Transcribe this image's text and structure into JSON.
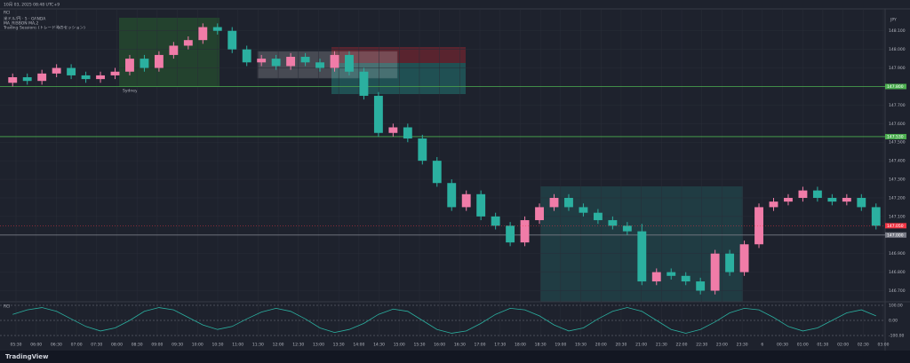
{
  "header": {
    "timestamp": "10月 03, 2025 08:48 UTC+9",
    "legend": [
      "米ドル/円 · 5 · OANDA",
      "MA_RIBBON MA,2",
      "Trading Sessions (トレード時のセッション)"
    ],
    "pane_label": "RCI",
    "session_label": "Sydney",
    "currency": "JPY"
  },
  "footer": {
    "brand": "TradingView"
  },
  "chart_data": {
    "type": "candlestick",
    "up_color": "#f07ca8",
    "down_color": "#2bb0a0",
    "open": [
      147.82,
      147.85,
      147.83,
      147.87,
      147.9,
      147.86,
      147.84,
      147.86,
      147.88,
      147.95,
      147.9,
      147.97,
      148.02,
      148.05,
      148.12,
      148.1,
      148.0,
      147.93,
      147.95,
      147.91,
      147.96,
      147.93,
      147.9,
      147.97,
      147.88,
      147.75,
      147.55,
      147.58,
      147.52,
      147.4,
      147.28,
      147.15,
      147.22,
      147.1,
      147.05,
      146.96,
      147.08,
      147.15,
      147.2,
      147.15,
      147.12,
      147.08,
      147.05,
      147.02,
      146.75,
      146.8,
      146.78,
      146.75,
      146.7,
      146.9,
      146.8,
      146.95,
      147.15,
      147.18,
      147.2,
      147.24,
      147.2,
      147.18,
      147.2,
      147.15
    ],
    "close": [
      147.85,
      147.83,
      147.87,
      147.9,
      147.86,
      147.84,
      147.86,
      147.88,
      147.95,
      147.9,
      147.97,
      148.02,
      148.05,
      148.12,
      148.1,
      148.0,
      147.93,
      147.95,
      147.91,
      147.96,
      147.93,
      147.9,
      147.97,
      147.88,
      147.75,
      147.55,
      147.58,
      147.52,
      147.4,
      147.28,
      147.15,
      147.22,
      147.1,
      147.05,
      146.96,
      147.08,
      147.15,
      147.2,
      147.15,
      147.12,
      147.08,
      147.05,
      147.02,
      146.75,
      146.8,
      146.78,
      146.75,
      146.7,
      146.9,
      146.8,
      146.95,
      147.15,
      147.18,
      147.2,
      147.24,
      147.2,
      147.18,
      147.2,
      147.15,
      147.05
    ],
    "high": [
      147.87,
      147.87,
      147.89,
      147.92,
      147.92,
      147.88,
      147.88,
      147.9,
      147.97,
      147.97,
      147.99,
      148.04,
      148.07,
      148.14,
      148.14,
      148.12,
      148.02,
      147.97,
      147.97,
      147.98,
      147.98,
      147.95,
      147.99,
      147.99,
      147.9,
      147.77,
      147.6,
      147.6,
      147.54,
      147.42,
      147.3,
      147.24,
      147.24,
      147.12,
      147.07,
      147.1,
      147.17,
      147.22,
      147.22,
      147.17,
      147.14,
      147.1,
      147.07,
      147.06,
      146.82,
      146.82,
      146.8,
      146.77,
      146.92,
      146.92,
      146.97,
      147.17,
      147.2,
      147.22,
      147.26,
      147.26,
      147.22,
      147.22,
      147.22,
      147.17
    ],
    "low": [
      147.8,
      147.81,
      147.81,
      147.85,
      147.84,
      147.82,
      147.82,
      147.84,
      147.86,
      147.88,
      147.88,
      147.95,
      148.0,
      148.03,
      148.08,
      147.98,
      147.91,
      147.91,
      147.89,
      147.89,
      147.91,
      147.88,
      147.88,
      147.86,
      147.73,
      147.53,
      147.53,
      147.5,
      147.38,
      147.26,
      147.13,
      147.13,
      147.08,
      147.03,
      146.94,
      146.94,
      147.06,
      147.13,
      147.13,
      147.1,
      147.06,
      147.03,
      147.0,
      146.73,
      146.73,
      146.76,
      146.73,
      146.68,
      146.68,
      146.78,
      146.78,
      146.93,
      147.13,
      147.16,
      147.18,
      147.18,
      147.16,
      147.16,
      147.13,
      147.03
    ],
    "ylim": [
      146.65,
      148.18
    ],
    "yticks": [
      {
        "value": 146.7,
        "label": "146.700"
      },
      {
        "value": 146.8,
        "label": "146.800"
      },
      {
        "value": 146.9,
        "label": "146.900"
      },
      {
        "value": 147.0,
        "label": "147.000"
      },
      {
        "value": 147.1,
        "label": "147.100"
      },
      {
        "value": 147.2,
        "label": "147.200"
      },
      {
        "value": 147.3,
        "label": "147.300"
      },
      {
        "value": 147.4,
        "label": "147.400"
      },
      {
        "value": 147.5,
        "label": "147.500"
      },
      {
        "value": 147.6,
        "label": "147.600"
      },
      {
        "value": 147.7,
        "label": "147.700"
      },
      {
        "value": 147.8,
        "label": "147.800"
      },
      {
        "value": 147.9,
        "label": "147.900"
      },
      {
        "value": 148.0,
        "label": "148.000"
      },
      {
        "value": 148.1,
        "label": "148.100"
      }
    ],
    "hlines": [
      {
        "value": 147.8,
        "label": "147.800",
        "color": "#4caf50"
      },
      {
        "value": 147.53,
        "label": "147.530",
        "color": "#4caf50"
      },
      {
        "value": 147.0,
        "label": "147.000",
        "color": "#787b86"
      }
    ],
    "last_price": {
      "value": 147.05,
      "label": "147.050",
      "color": "#f23645"
    },
    "xtick_labels": [
      "05:30",
      "06:00",
      "06:30",
      "07:00",
      "07:30",
      "08:00",
      "08:30",
      "09:00",
      "09:30",
      "10:00",
      "10:30",
      "11:00",
      "11:30",
      "12:00",
      "12:30",
      "13:00",
      "13:30",
      "14:00",
      "14:30",
      "15:00",
      "15:30",
      "16:00",
      "16:30",
      "17:00",
      "17:30",
      "18:00",
      "18:30",
      "19:00",
      "19:30",
      "20:00",
      "20:30",
      "21:00",
      "21:30",
      "22:00",
      "22:30",
      "23:00",
      "23:30",
      "6",
      "00:30",
      "01:00",
      "01:30",
      "02:00",
      "02:30",
      "03:00"
    ],
    "rci": {
      "color": "#2bb0a0",
      "values": [
        40,
        70,
        85,
        60,
        10,
        -40,
        -70,
        -50,
        0,
        60,
        85,
        70,
        20,
        -30,
        -60,
        -40,
        10,
        55,
        80,
        60,
        10,
        -50,
        -80,
        -60,
        -20,
        40,
        75,
        60,
        0,
        -60,
        -85,
        -70,
        -20,
        40,
        80,
        70,
        30,
        -30,
        -70,
        -50,
        10,
        60,
        85,
        60,
        0,
        -60,
        -85,
        -60,
        -10,
        50,
        80,
        70,
        20,
        -40,
        -70,
        -50,
        0,
        50,
        70,
        30
      ],
      "ylim": [
        -100,
        100
      ],
      "yticks": [
        {
          "value": 100,
          "label": "100.00"
        },
        {
          "value": 0,
          "label": "0.00"
        },
        {
          "value": -100,
          "label": "-100.00"
        }
      ]
    }
  }
}
